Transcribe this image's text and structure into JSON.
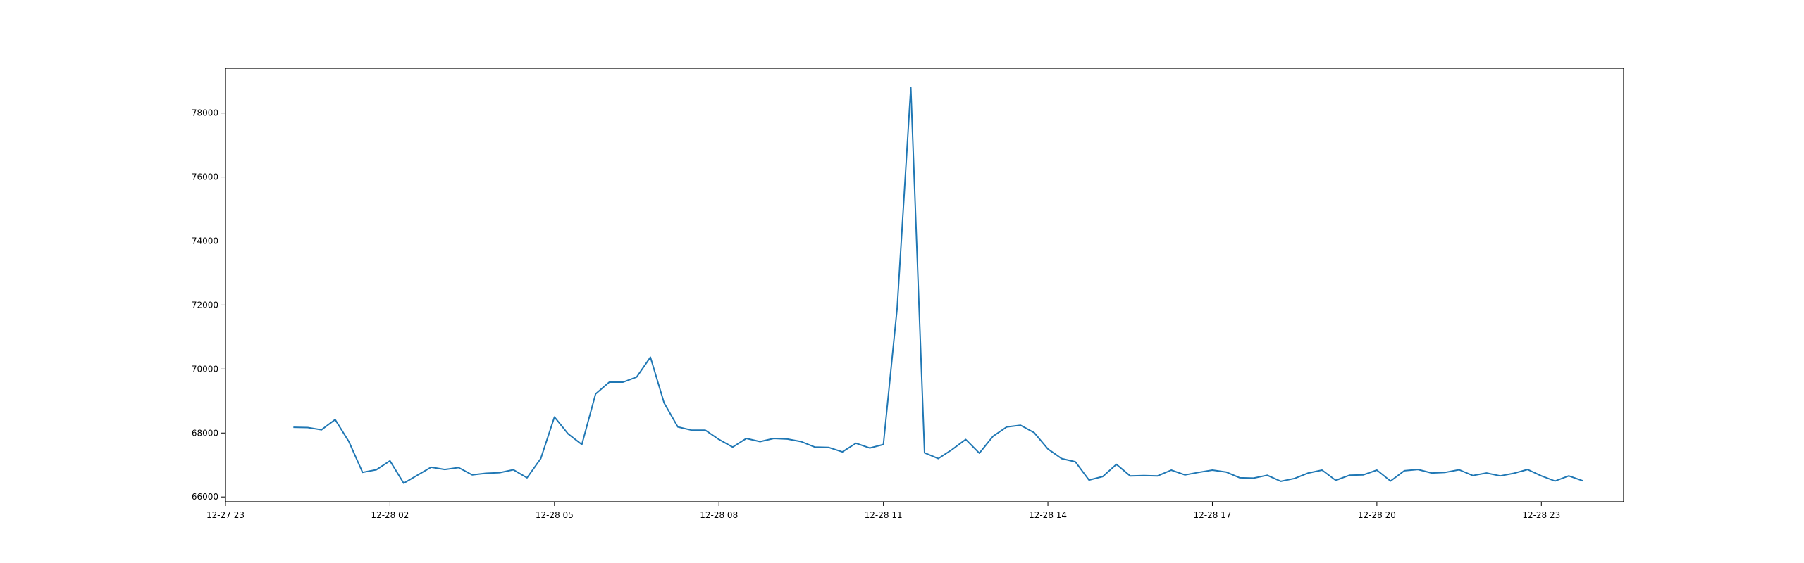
{
  "chart_data": {
    "type": "line",
    "title": "",
    "xlabel": "",
    "ylabel": "",
    "grid": false,
    "legend": "none",
    "line_color": "#1f77b4",
    "x_tick_labels": [
      "12-27 23",
      "12-28 02",
      "12-28 05",
      "12-28 08",
      "12-28 11",
      "12-28 14",
      "12-28 17",
      "12-28 20",
      "12-28 23"
    ],
    "y_tick_labels": [
      "66000",
      "68000",
      "70000",
      "72000",
      "74000",
      "76000",
      "78000"
    ],
    "xlim": [
      "2023-12-27 23:00",
      "2023-12-29 00:30"
    ],
    "ylim": [
      65850,
      79400
    ],
    "series": [
      {
        "x": [
          "2023-12-28 00:15",
          "2023-12-28 00:30",
          "2023-12-28 00:45",
          "2023-12-28 01:00",
          "2023-12-28 01:15",
          "2023-12-28 01:30",
          "2023-12-28 01:45",
          "2023-12-28 02:00",
          "2023-12-28 02:15",
          "2023-12-28 02:30",
          "2023-12-28 02:45",
          "2023-12-28 03:00",
          "2023-12-28 03:15",
          "2023-12-28 03:30",
          "2023-12-28 03:45",
          "2023-12-28 04:00",
          "2023-12-28 04:15",
          "2023-12-28 04:30",
          "2023-12-28 04:45",
          "2023-12-28 05:00",
          "2023-12-28 05:15",
          "2023-12-28 05:30",
          "2023-12-28 05:45",
          "2023-12-28 06:00",
          "2023-12-28 06:15",
          "2023-12-28 06:30",
          "2023-12-28 06:45",
          "2023-12-28 07:00",
          "2023-12-28 07:15",
          "2023-12-28 07:30",
          "2023-12-28 07:45",
          "2023-12-28 08:00",
          "2023-12-28 08:15",
          "2023-12-28 08:30",
          "2023-12-28 08:45",
          "2023-12-28 09:00",
          "2023-12-28 09:15",
          "2023-12-28 09:30",
          "2023-12-28 09:45",
          "2023-12-28 10:00",
          "2023-12-28 10:15",
          "2023-12-28 10:30",
          "2023-12-28 10:45",
          "2023-12-28 11:00",
          "2023-12-28 11:15",
          "2023-12-28 11:30",
          "2023-12-28 11:45",
          "2023-12-28 12:00",
          "2023-12-28 12:15",
          "2023-12-28 12:30",
          "2023-12-28 12:45",
          "2023-12-28 13:00",
          "2023-12-28 13:15",
          "2023-12-28 13:30",
          "2023-12-28 13:45",
          "2023-12-28 14:00",
          "2023-12-28 14:15",
          "2023-12-28 14:30",
          "2023-12-28 14:45",
          "2023-12-28 15:00",
          "2023-12-28 15:15",
          "2023-12-28 15:30",
          "2023-12-28 15:45",
          "2023-12-28 16:00",
          "2023-12-28 16:15",
          "2023-12-28 16:30",
          "2023-12-28 16:45",
          "2023-12-28 17:00",
          "2023-12-28 17:15",
          "2023-12-28 17:30",
          "2023-12-28 17:45",
          "2023-12-28 18:00",
          "2023-12-28 18:15",
          "2023-12-28 18:30",
          "2023-12-28 18:45",
          "2023-12-28 19:00",
          "2023-12-28 19:15",
          "2023-12-28 19:30",
          "2023-12-28 19:45",
          "2023-12-28 20:00",
          "2023-12-28 20:15",
          "2023-12-28 20:30",
          "2023-12-28 20:45",
          "2023-12-28 21:00",
          "2023-12-28 21:15",
          "2023-12-28 21:30",
          "2023-12-28 21:45",
          "2023-12-28 22:00",
          "2023-12-28 22:15",
          "2023-12-28 22:30",
          "2023-12-28 22:45",
          "2023-12-28 23:00",
          "2023-12-28 23:15",
          "2023-12-28 23:30",
          "2023-12-28 23:45"
        ],
        "values": [
          68180,
          68170,
          68100,
          68420,
          67730,
          66770,
          66850,
          67130,
          66430,
          66680,
          66930,
          66860,
          66920,
          66690,
          66740,
          66760,
          66850,
          66600,
          67200,
          68500,
          67970,
          67640,
          69220,
          69590,
          69590,
          69750,
          70370,
          68940,
          68190,
          68090,
          68090,
          67800,
          67560,
          67830,
          67730,
          67830,
          67810,
          67730,
          67560,
          67550,
          67410,
          67680,
          67530,
          67640,
          71900,
          78800,
          67380,
          67200,
          67480,
          67800,
          67370,
          67900,
          68190,
          68240,
          68010,
          67500,
          67200,
          67100,
          66530,
          66640,
          67020,
          66660,
          66670,
          66660,
          66840,
          66690,
          66770,
          66840,
          66780,
          66600,
          66590,
          66680,
          66490,
          66580,
          66750,
          66840,
          66520,
          66680,
          66690,
          66840,
          66500,
          66820,
          66860,
          66750,
          66770,
          66850,
          66670,
          66750,
          66660,
          66740,
          66860,
          66660,
          66500,
          66660,
          66510
        ]
      }
    ]
  }
}
